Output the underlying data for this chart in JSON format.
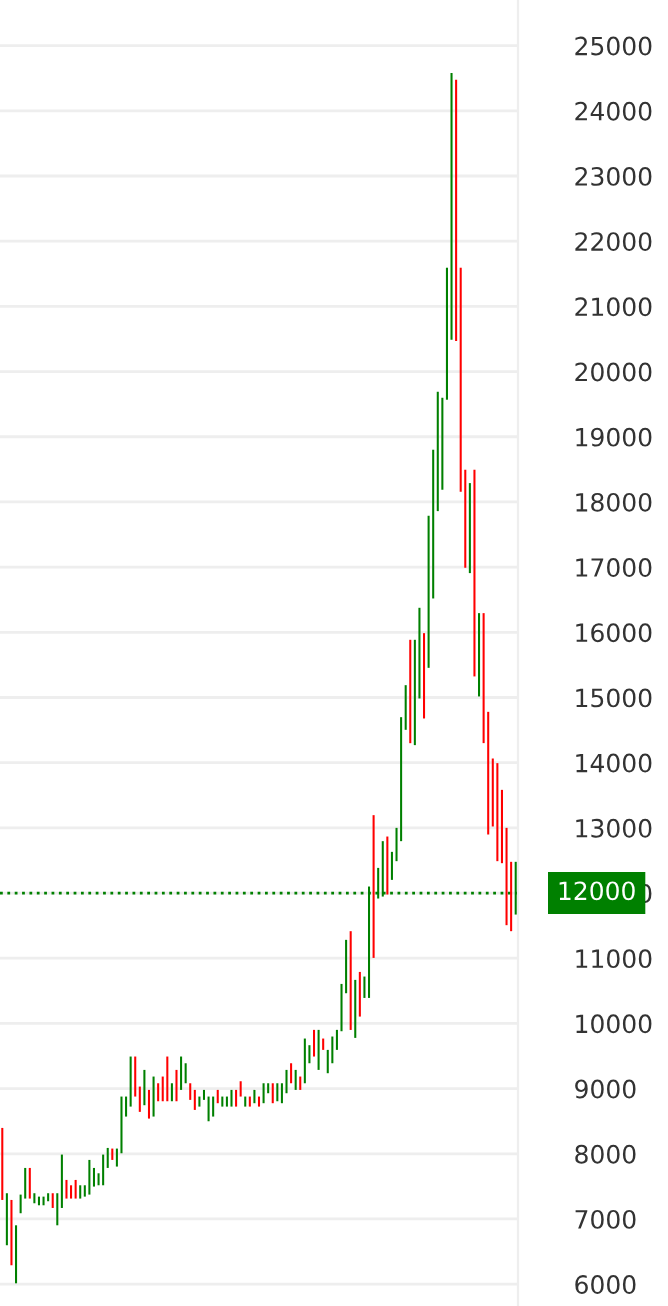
{
  "chart_data": {
    "type": "candlestick",
    "categories": [
      null,
      null,
      null,
      null,
      null,
      null,
      null,
      null,
      null,
      null,
      null,
      null,
      null,
      null,
      null,
      null,
      null,
      null,
      null,
      null,
      null,
      null,
      null,
      null,
      null,
      null,
      null,
      null,
      null,
      null,
      null,
      null,
      null,
      null,
      null,
      null,
      null,
      null,
      null,
      null,
      null,
      null,
      null,
      null,
      null,
      null,
      null,
      null,
      null,
      null,
      null,
      null,
      null,
      null,
      null,
      null,
      null,
      null,
      null,
      null,
      null,
      null,
      null,
      null,
      null,
      null,
      null,
      null,
      null,
      null,
      null,
      null,
      null,
      null,
      null,
      null,
      null,
      null,
      null,
      null,
      null,
      null,
      null,
      null,
      null,
      null,
      null,
      null,
      null,
      null,
      null,
      null,
      null,
      null,
      null,
      null,
      null,
      null,
      null,
      null,
      null,
      null,
      null,
      null,
      null,
      null,
      null,
      null,
      null,
      null,
      null,
      null,
      null
    ],
    "ohlc": [
      [
        8397,
        8397,
        7292,
        7292
      ],
      [
        6597,
        7395,
        6597,
        7395
      ],
      [
        7292,
        7292,
        6290,
        6290
      ],
      [
        6013,
        6903,
        6013,
        6903
      ],
      [
        7088,
        7374,
        7088,
        7374
      ],
      [
        7313,
        7783,
        7313,
        7783
      ],
      [
        7783,
        7783,
        7313,
        7313
      ],
      [
        7241,
        7395,
        7241,
        7395
      ],
      [
        7210,
        7343,
        7210,
        7343
      ],
      [
        7210,
        7343,
        7210,
        7343
      ],
      [
        7272,
        7395,
        7272,
        7395
      ],
      [
        7395,
        7395,
        7169,
        7169
      ],
      [
        6903,
        7395,
        6903,
        7395
      ],
      [
        7169,
        7988,
        7169,
        7988
      ],
      [
        7599,
        7599,
        7313,
        7313
      ],
      [
        7517,
        7517,
        7313,
        7313
      ],
      [
        7599,
        7599,
        7313,
        7313
      ],
      [
        7313,
        7517,
        7313,
        7517
      ],
      [
        7343,
        7517,
        7343,
        7517
      ],
      [
        7374,
        7906,
        7374,
        7906
      ],
      [
        7497,
        7783,
        7497,
        7783
      ],
      [
        7517,
        7701,
        7517,
        7701
      ],
      [
        7517,
        7988,
        7517,
        7988
      ],
      [
        7783,
        8090,
        7783,
        8090
      ],
      [
        8080,
        8080,
        7906,
        7906
      ],
      [
        7804,
        8080,
        7804,
        8080
      ],
      [
        8008,
        8878,
        8008,
        8878
      ],
      [
        8571,
        8878,
        8571,
        8878
      ],
      [
        8724,
        9492,
        8724,
        9492
      ],
      [
        9492,
        9492,
        8878,
        8878
      ],
      [
        9031,
        9031,
        8643,
        8643
      ],
      [
        8745,
        9287,
        8745,
        9287
      ],
      [
        8980,
        8980,
        8540,
        8540
      ],
      [
        8571,
        9185,
        8571,
        9185
      ],
      [
        9082,
        9082,
        8806,
        8806
      ],
      [
        9185,
        9185,
        8806,
        8806
      ],
      [
        9492,
        9492,
        8806,
        8806
      ],
      [
        8806,
        9082,
        8806,
        9082
      ],
      [
        9287,
        9287,
        8806,
        8806
      ],
      [
        8980,
        9492,
        8980,
        9492
      ],
      [
        9082,
        9389,
        9082,
        9389
      ],
      [
        9082,
        9082,
        8827,
        8827
      ],
      [
        8980,
        8980,
        8673,
        8673
      ],
      [
        8724,
        8878,
        8724,
        8878
      ],
      [
        8827,
        8980,
        8827,
        8980
      ],
      [
        8499,
        8878,
        8499,
        8878
      ],
      [
        8571,
        8878,
        8571,
        8878
      ],
      [
        8980,
        8980,
        8776,
        8776
      ],
      [
        8724,
        8878,
        8724,
        8878
      ],
      [
        8724,
        8878,
        8724,
        8878
      ],
      [
        8724,
        8980,
        8724,
        8980
      ],
      [
        8980,
        8980,
        8724,
        8724
      ],
      [
        9113,
        9113,
        8878,
        8878
      ],
      [
        8724,
        8878,
        8724,
        8878
      ],
      [
        8878,
        8878,
        8724,
        8724
      ],
      [
        8776,
        8980,
        8776,
        8980
      ],
      [
        8878,
        8878,
        8724,
        8724
      ],
      [
        8776,
        9082,
        8776,
        9082
      ],
      [
        8929,
        9082,
        8929,
        9082
      ],
      [
        9082,
        9082,
        8776,
        8776
      ],
      [
        8806,
        9082,
        8806,
        9082
      ],
      [
        8776,
        9082,
        8776,
        9082
      ],
      [
        8929,
        9287,
        8929,
        9287
      ],
      [
        9389,
        9389,
        9082,
        9082
      ],
      [
        8980,
        9287,
        8980,
        9287
      ],
      [
        9185,
        9185,
        8980,
        8980
      ],
      [
        9082,
        9768,
        9082,
        9768
      ],
      [
        9389,
        9666,
        9389,
        9666
      ],
      [
        9901,
        9901,
        9492,
        9492
      ],
      [
        9287,
        9901,
        9287,
        9901
      ],
      [
        9768,
        9768,
        9594,
        9594
      ],
      [
        9236,
        9594,
        9236,
        9594
      ],
      [
        9389,
        9799,
        9389,
        9799
      ],
      [
        9594,
        9901,
        9594,
        9901
      ],
      [
        9880,
        10606,
        9880,
        10606
      ],
      [
        10463,
        11282,
        10463,
        11282
      ],
      [
        11415,
        11415,
        9900,
        9900
      ],
      [
        9778,
        10668,
        9778,
        10668
      ],
      [
        10790,
        10790,
        10105,
        10105
      ],
      [
        10391,
        10719,
        10391,
        10719
      ],
      [
        10391,
        12100,
        10391,
        12100
      ],
      [
        13195,
        13195,
        11005,
        11005
      ],
      [
        11916,
        12386,
        11916,
        12386
      ],
      [
        11946,
        12796,
        11946,
        12796
      ],
      [
        12867,
        12867,
        11977,
        11977
      ],
      [
        12202,
        12632,
        12202,
        12632
      ],
      [
        12489,
        13000,
        12489,
        13000
      ],
      [
        12796,
        14698,
        12796,
        14698
      ],
      [
        14504,
        15189,
        14504,
        15189
      ],
      [
        15885,
        15885,
        14299,
        14299
      ],
      [
        14269,
        15885,
        14269,
        15885
      ],
      [
        14985,
        16376,
        14985,
        16376
      ],
      [
        15987,
        15987,
        14678,
        14678
      ],
      [
        15455,
        17788,
        15455,
        17788
      ],
      [
        16519,
        18801,
        16519,
        18801
      ],
      [
        17859,
        19690,
        17859,
        19690
      ],
      [
        18187,
        19598,
        18187,
        19598
      ],
      [
        19568,
        21593,
        19568,
        21593
      ],
      [
        20489,
        24580,
        20489,
        24580
      ],
      [
        24478,
        24478,
        20468,
        20468
      ],
      [
        21593,
        21593,
        18156,
        18156
      ],
      [
        18494,
        18494,
        16990,
        16990
      ],
      [
        16908,
        18289,
        16908,
        18289
      ],
      [
        18494,
        18494,
        15323,
        15323
      ],
      [
        15016,
        16294,
        15016,
        16294
      ],
      [
        16294,
        16294,
        14300,
        14300
      ],
      [
        14780,
        14780,
        12898,
        12898
      ],
      [
        14064,
        14064,
        13021,
        13021
      ],
      [
        13993,
        13993,
        12489,
        12489
      ],
      [
        13583,
        13583,
        12458,
        12458
      ],
      [
        13000,
        13000,
        11507,
        11507
      ],
      [
        12479,
        12479,
        11415,
        11415
      ],
      [
        11670,
        12479,
        11670,
        12479
      ]
    ],
    "colors": [
      "#ff0000",
      "#008000",
      "#ff0000",
      "#008000",
      "#008000",
      "#008000",
      "#ff0000",
      "#008000",
      "#008000",
      "#008000",
      "#008000",
      "#ff0000",
      "#008000",
      "#008000",
      "#ff0000",
      "#ff0000",
      "#ff0000",
      "#008000",
      "#008000",
      "#008000",
      "#008000",
      "#008000",
      "#008000",
      "#008000",
      "#ff0000",
      "#008000",
      "#008000",
      "#008000",
      "#008000",
      "#ff0000",
      "#ff0000",
      "#008000",
      "#ff0000",
      "#008000",
      "#ff0000",
      "#ff0000",
      "#ff0000",
      "#008000",
      "#ff0000",
      "#008000",
      "#008000",
      "#ff0000",
      "#ff0000",
      "#008000",
      "#008000",
      "#008000",
      "#008000",
      "#ff0000",
      "#008000",
      "#008000",
      "#008000",
      "#ff0000",
      "#ff0000",
      "#008000",
      "#ff0000",
      "#008000",
      "#ff0000",
      "#008000",
      "#008000",
      "#ff0000",
      "#008000",
      "#008000",
      "#008000",
      "#ff0000",
      "#008000",
      "#ff0000",
      "#008000",
      "#008000",
      "#ff0000",
      "#008000",
      "#ff0000",
      "#008000",
      "#008000",
      "#008000",
      "#008000",
      "#008000",
      "#ff0000",
      "#008000",
      "#ff0000",
      "#008000",
      "#008000",
      "#ff0000",
      "#008000",
      "#008000",
      "#ff0000",
      "#008000",
      "#008000",
      "#008000",
      "#008000",
      "#ff0000",
      "#008000",
      "#008000",
      "#ff0000",
      "#008000",
      "#008000",
      "#008000",
      "#008000",
      "#008000",
      "#008000",
      "#ff0000",
      "#ff0000",
      "#ff0000",
      "#008000",
      "#ff0000",
      "#008000",
      "#ff0000",
      "#ff0000",
      "#ff0000",
      "#ff0000",
      "#ff0000",
      "#ff0000",
      "#ff0000",
      "#008000"
    ],
    "ylim": [
      5665,
      25700
    ],
    "yticks": [
      6000,
      7000,
      8000,
      9000,
      10000,
      11000,
      12000,
      13000,
      14000,
      15000,
      16000,
      17000,
      18000,
      19000,
      20000,
      21000,
      22000,
      23000,
      24000,
      25000
    ],
    "ref_lines": [
      {
        "axis": "y",
        "value": 12000,
        "label": "12000",
        "color": "#008000",
        "line_style": "dotted"
      }
    ],
    "grid": "y",
    "tick_labels": "y"
  }
}
